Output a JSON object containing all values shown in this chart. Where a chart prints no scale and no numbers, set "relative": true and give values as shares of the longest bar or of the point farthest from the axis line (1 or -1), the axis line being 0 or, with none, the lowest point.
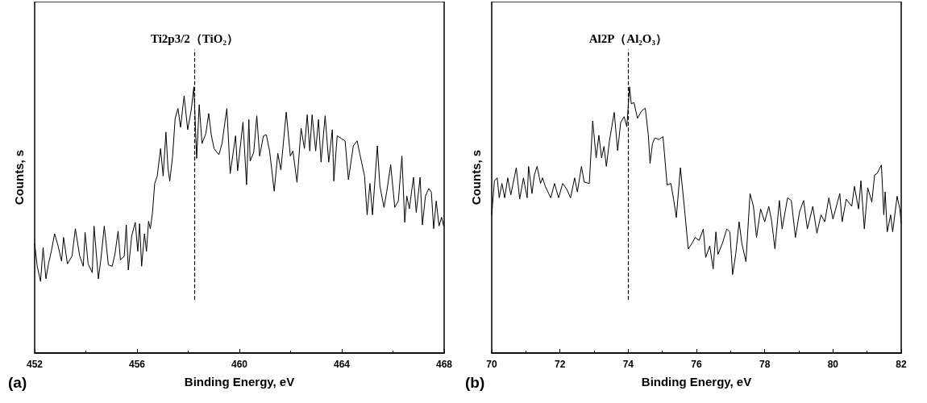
{
  "chart_data": [
    {
      "type": "line",
      "xlabel": "Binding Energy, eV",
      "ylabel": "Counts, s",
      "relative": true,
      "tick_labels": "x",
      "xlim": [
        452,
        468
      ],
      "xticks": [
        452,
        456,
        460,
        464,
        468
      ],
      "grid": false,
      "marker": "none",
      "line_style": "solid",
      "annotations": [
        "(a)"
      ],
      "ref_lines": [
        {
          "axis": "x",
          "value": 458.25,
          "label": "Ti2p3/2（TiO₂）",
          "line_style": "dashed",
          "color": "#000000"
        }
      ],
      "series": [
        {
          "color": "#000000",
          "x": [
            452.0,
            452.1,
            452.23,
            452.33,
            452.44,
            452.54,
            452.65,
            452.78,
            452.92,
            453.05,
            453.13,
            453.28,
            453.46,
            453.59,
            453.76,
            453.9,
            453.97,
            454.09,
            454.25,
            454.32,
            454.49,
            454.59,
            454.72,
            454.88,
            455.03,
            455.14,
            455.26,
            455.35,
            455.5,
            455.58,
            455.66,
            455.79,
            455.93,
            456.03,
            456.1,
            456.18,
            456.29,
            456.37,
            456.45,
            456.52,
            456.6,
            456.69,
            456.79,
            456.92,
            457.02,
            457.13,
            457.21,
            457.28,
            457.39,
            457.49,
            457.6,
            457.7,
            457.84,
            457.98,
            458.12,
            458.22,
            458.33,
            458.43,
            458.54,
            458.69,
            458.8,
            458.9,
            459.01,
            459.2,
            459.32,
            459.51,
            459.64,
            459.85,
            459.93,
            460.14,
            460.28,
            460.37,
            460.42,
            460.56,
            460.68,
            460.79,
            460.94,
            461.05,
            461.18,
            461.36,
            461.5,
            461.62,
            461.83,
            461.99,
            462.09,
            462.25,
            462.41,
            462.54,
            462.65,
            462.75,
            462.84,
            462.98,
            463.09,
            463.19,
            463.35,
            463.49,
            463.63,
            463.69,
            463.82,
            463.98,
            464.13,
            464.26,
            464.45,
            464.6,
            464.71,
            464.89,
            464.99,
            465.1,
            465.2,
            465.39,
            465.49,
            465.65,
            465.76,
            465.91,
            466.02,
            466.07,
            466.21,
            466.35,
            466.46,
            466.54,
            466.64,
            466.8,
            466.91,
            467.06,
            467.15,
            467.27,
            467.4,
            467.5,
            467.59,
            467.69,
            467.8,
            467.9,
            467.98
          ],
          "values": [
            0.411,
            0.326,
            0.269,
            0.396,
            0.279,
            0.335,
            0.382,
            0.448,
            0.401,
            0.345,
            0.434,
            0.335,
            0.364,
            0.467,
            0.364,
            0.326,
            0.453,
            0.335,
            0.302,
            0.477,
            0.279,
            0.354,
            0.477,
            0.331,
            0.326,
            0.373,
            0.458,
            0.35,
            0.364,
            0.481,
            0.312,
            0.439,
            0.491,
            0.382,
            0.486,
            0.326,
            0.448,
            0.382,
            0.495,
            0.467,
            0.524,
            0.637,
            0.665,
            0.768,
            0.665,
            0.83,
            0.693,
            0.646,
            0.74,
            0.881,
            0.919,
            0.848,
            0.966,
            0.839,
            0.914,
            1.0,
            0.731,
            0.933,
            0.787,
            0.825,
            0.9,
            0.82,
            0.768,
            0.745,
            0.787,
            0.919,
            0.674,
            0.816,
            0.684,
            0.867,
            0.632,
            0.877,
            0.721,
            0.754,
            0.891,
            0.74,
            0.816,
            0.82,
            0.759,
            0.608,
            0.75,
            0.688,
            0.905,
            0.74,
            0.759,
            0.641,
            0.844,
            0.768,
            0.895,
            0.759,
            0.895,
            0.759,
            0.877,
            0.717,
            0.891,
            0.717,
            0.839,
            0.646,
            0.816,
            0.806,
            0.797,
            0.651,
            0.778,
            0.797,
            0.745,
            0.665,
            0.519,
            0.637,
            0.519,
            0.778,
            0.627,
            0.547,
            0.608,
            0.707,
            0.599,
            0.547,
            0.571,
            0.74,
            0.491,
            0.59,
            0.542,
            0.66,
            0.528,
            0.66,
            0.481,
            0.59,
            0.618,
            0.604,
            0.467,
            0.571,
            0.477,
            0.51,
            0.477
          ]
        }
      ]
    },
    {
      "type": "line",
      "xlabel": "Binding Energy, eV",
      "ylabel": "Counts, s",
      "relative": true,
      "tick_labels": "x",
      "xlim": [
        70,
        82
      ],
      "xticks": [
        70,
        72,
        74,
        76,
        78,
        80,
        82
      ],
      "grid": false,
      "marker": "none",
      "line_style": "solid",
      "annotations": [
        "(b)"
      ],
      "ref_lines": [
        {
          "axis": "x",
          "value": 74.0,
          "label": "Al2P（Al₂O₃）",
          "line_style": "dashed",
          "color": "#000000"
        }
      ],
      "series": [
        {
          "color": "#000000",
          "x": [
            70.0,
            70.08,
            70.16,
            70.22,
            70.3,
            70.38,
            70.47,
            70.56,
            70.72,
            70.82,
            70.93,
            71.04,
            71.08,
            71.18,
            71.25,
            71.33,
            71.43,
            71.49,
            71.57,
            71.73,
            71.84,
            71.96,
            72.08,
            72.2,
            72.31,
            72.43,
            72.51,
            72.63,
            72.71,
            72.86,
            72.96,
            73.06,
            73.14,
            73.22,
            73.29,
            73.36,
            73.45,
            73.59,
            73.69,
            73.78,
            73.88,
            73.96,
            74.04,
            74.09,
            74.17,
            74.27,
            74.39,
            74.5,
            74.59,
            74.64,
            74.71,
            74.78,
            74.9,
            75.02,
            75.14,
            75.25,
            75.33,
            75.41,
            75.53,
            75.65,
            75.76,
            75.87,
            75.96,
            76.08,
            76.2,
            76.27,
            76.39,
            76.49,
            76.57,
            76.63,
            76.76,
            76.89,
            76.98,
            77.06,
            77.15,
            77.25,
            77.33,
            77.45,
            77.57,
            77.67,
            77.76,
            77.88,
            78.0,
            78.12,
            78.2,
            78.3,
            78.43,
            78.51,
            78.67,
            78.78,
            78.9,
            79.02,
            79.14,
            79.25,
            79.41,
            79.53,
            79.65,
            79.76,
            79.88,
            80.0,
            80.2,
            80.27,
            80.39,
            80.55,
            80.63,
            80.75,
            80.82,
            80.92,
            81.02,
            81.14,
            81.22,
            81.29,
            81.42,
            81.49,
            81.53,
            81.59,
            81.69,
            81.75,
            81.88,
            81.96,
            82.0
          ],
          "values": [
            0.519,
            0.647,
            0.658,
            0.583,
            0.637,
            0.583,
            0.658,
            0.594,
            0.696,
            0.578,
            0.658,
            0.583,
            0.701,
            0.599,
            0.669,
            0.701,
            0.637,
            0.658,
            0.626,
            0.583,
            0.637,
            0.583,
            0.637,
            0.615,
            0.583,
            0.658,
            0.605,
            0.701,
            0.642,
            0.637,
            0.872,
            0.733,
            0.818,
            0.733,
            0.776,
            0.701,
            0.797,
            0.904,
            0.76,
            0.866,
            0.888,
            0.85,
            1.0,
            0.936,
            0.941,
            0.882,
            0.909,
            0.92,
            0.818,
            0.712,
            0.786,
            0.808,
            0.802,
            0.813,
            0.631,
            0.637,
            0.578,
            0.509,
            0.696,
            0.541,
            0.391,
            0.412,
            0.434,
            0.423,
            0.466,
            0.359,
            0.402,
            0.316,
            0.455,
            0.37,
            0.412,
            0.466,
            0.455,
            0.295,
            0.37,
            0.493,
            0.412,
            0.343,
            0.599,
            0.551,
            0.434,
            0.541,
            0.493,
            0.551,
            0.498,
            0.391,
            0.573,
            0.466,
            0.583,
            0.573,
            0.434,
            0.53,
            0.573,
            0.466,
            0.551,
            0.45,
            0.519,
            0.493,
            0.583,
            0.503,
            0.599,
            0.493,
            0.578,
            0.551,
            0.626,
            0.541,
            0.647,
            0.466,
            0.621,
            0.567,
            0.669,
            0.674,
            0.706,
            0.519,
            0.605,
            0.455,
            0.519,
            0.455,
            0.589,
            0.541,
            0.487
          ]
        }
      ]
    }
  ]
}
